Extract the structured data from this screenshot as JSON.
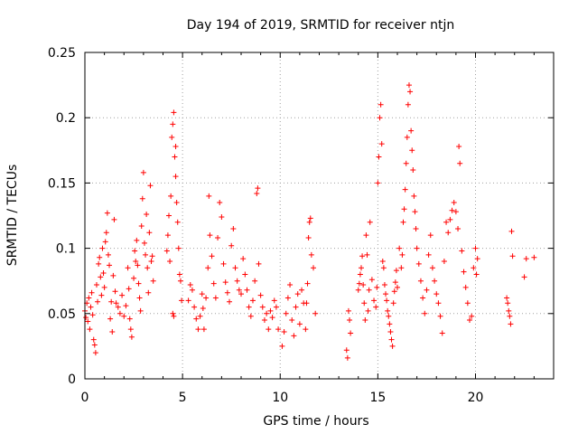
{
  "chart_data": {
    "type": "scatter",
    "title": "Day 194 of 2019, SRMTID for receiver ntjn",
    "xlabel": "GPS time / hours",
    "ylabel": "SRMTID / TECUs",
    "xlim": [
      0,
      24
    ],
    "ylim": [
      0,
      0.25
    ],
    "x_ticks": [
      0,
      5,
      10,
      15,
      20
    ],
    "x_tick_labels": [
      "0",
      "5",
      "10",
      "15",
      "20"
    ],
    "y_ticks": [
      0,
      0.05,
      0.1,
      0.15,
      0.2,
      0.25
    ],
    "y_tick_labels": [
      "0",
      "0.05",
      "0.1",
      "0.15",
      "0.2",
      "0.25"
    ],
    "grid": true,
    "marker": "+",
    "color": "#ff0000",
    "series": [
      {
        "name": "SRMTID",
        "points": [
          [
            0.0,
            0.052
          ],
          [
            0.05,
            0.047
          ],
          [
            0.1,
            0.058
          ],
          [
            0.15,
            0.044
          ],
          [
            0.2,
            0.062
          ],
          [
            0.25,
            0.038
          ],
          [
            0.3,
            0.055
          ],
          [
            0.35,
            0.066
          ],
          [
            0.4,
            0.049
          ],
          [
            0.45,
            0.03
          ],
          [
            0.5,
            0.026
          ],
          [
            0.55,
            0.02
          ],
          [
            0.6,
            0.072
          ],
          [
            0.65,
            0.059
          ],
          [
            0.7,
            0.088
          ],
          [
            0.75,
            0.093
          ],
          [
            0.8,
            0.078
          ],
          [
            0.85,
            0.064
          ],
          [
            0.9,
            0.1
          ],
          [
            0.95,
            0.081
          ],
          [
            1.0,
            0.07
          ],
          [
            1.05,
            0.105
          ],
          [
            1.1,
            0.112
          ],
          [
            1.15,
            0.127
          ],
          [
            1.2,
            0.095
          ],
          [
            1.25,
            0.087
          ],
          [
            1.3,
            0.046
          ],
          [
            1.35,
            0.059
          ],
          [
            1.4,
            0.036
          ],
          [
            1.45,
            0.079
          ],
          [
            1.5,
            0.122
          ],
          [
            1.55,
            0.067
          ],
          [
            1.6,
            0.058
          ],
          [
            1.7,
            0.055
          ],
          [
            1.8,
            0.05
          ],
          [
            1.9,
            0.064
          ],
          [
            2.0,
            0.048
          ],
          [
            2.1,
            0.056
          ],
          [
            2.2,
            0.085
          ],
          [
            2.25,
            0.069
          ],
          [
            2.3,
            0.046
          ],
          [
            2.35,
            0.038
          ],
          [
            2.4,
            0.032
          ],
          [
            2.5,
            0.077
          ],
          [
            2.55,
            0.098
          ],
          [
            2.6,
            0.09
          ],
          [
            2.65,
            0.106
          ],
          [
            2.7,
            0.087
          ],
          [
            2.75,
            0.073
          ],
          [
            2.8,
            0.062
          ],
          [
            2.85,
            0.052
          ],
          [
            2.9,
            0.117
          ],
          [
            2.95,
            0.138
          ],
          [
            3.0,
            0.158
          ],
          [
            3.05,
            0.104
          ],
          [
            3.1,
            0.095
          ],
          [
            3.15,
            0.126
          ],
          [
            3.2,
            0.085
          ],
          [
            3.25,
            0.066
          ],
          [
            3.3,
            0.112
          ],
          [
            3.35,
            0.148
          ],
          [
            3.4,
            0.09
          ],
          [
            3.45,
            0.094
          ],
          [
            3.5,
            0.075
          ],
          [
            4.2,
            0.098
          ],
          [
            4.25,
            0.11
          ],
          [
            4.3,
            0.125
          ],
          [
            4.35,
            0.09
          ],
          [
            4.4,
            0.14
          ],
          [
            4.45,
            0.185
          ],
          [
            4.5,
            0.195
          ],
          [
            4.55,
            0.204
          ],
          [
            4.6,
            0.17
          ],
          [
            4.65,
            0.155
          ],
          [
            4.7,
            0.135
          ],
          [
            4.75,
            0.12
          ],
          [
            4.8,
            0.1
          ],
          [
            4.85,
            0.08
          ],
          [
            4.9,
            0.075
          ],
          [
            4.95,
            0.06
          ],
          [
            4.55,
            0.048
          ],
          [
            4.5,
            0.05
          ],
          [
            4.65,
            0.178
          ],
          [
            5.3,
            0.06
          ],
          [
            5.4,
            0.072
          ],
          [
            5.5,
            0.068
          ],
          [
            5.6,
            0.055
          ],
          [
            5.7,
            0.046
          ],
          [
            5.8,
            0.038
          ],
          [
            5.9,
            0.048
          ],
          [
            6.0,
            0.065
          ],
          [
            6.05,
            0.054
          ],
          [
            6.1,
            0.038
          ],
          [
            6.2,
            0.062
          ],
          [
            6.3,
            0.085
          ],
          [
            6.35,
            0.14
          ],
          [
            6.4,
            0.11
          ],
          [
            6.5,
            0.094
          ],
          [
            6.6,
            0.073
          ],
          [
            6.7,
            0.062
          ],
          [
            6.8,
            0.108
          ],
          [
            6.9,
            0.135
          ],
          [
            7.0,
            0.124
          ],
          [
            7.1,
            0.088
          ],
          [
            7.2,
            0.074
          ],
          [
            7.3,
            0.066
          ],
          [
            7.4,
            0.059
          ],
          [
            7.5,
            0.102
          ],
          [
            7.6,
            0.115
          ],
          [
            7.7,
            0.085
          ],
          [
            7.8,
            0.075
          ],
          [
            7.9,
            0.068
          ],
          [
            8.0,
            0.065
          ],
          [
            8.1,
            0.092
          ],
          [
            8.2,
            0.08
          ],
          [
            8.3,
            0.068
          ],
          [
            8.4,
            0.055
          ],
          [
            8.5,
            0.048
          ],
          [
            8.6,
            0.06
          ],
          [
            8.7,
            0.075
          ],
          [
            8.8,
            0.142
          ],
          [
            8.85,
            0.146
          ],
          [
            8.9,
            0.088
          ],
          [
            9.0,
            0.064
          ],
          [
            9.1,
            0.055
          ],
          [
            9.2,
            0.045
          ],
          [
            9.3,
            0.05
          ],
          [
            9.4,
            0.038
          ],
          [
            9.5,
            0.052
          ],
          [
            9.6,
            0.047
          ],
          [
            9.7,
            0.06
          ],
          [
            9.8,
            0.055
          ],
          [
            9.9,
            0.038
          ],
          [
            10.1,
            0.025
          ],
          [
            10.2,
            0.036
          ],
          [
            10.3,
            0.05
          ],
          [
            10.4,
            0.062
          ],
          [
            10.5,
            0.072
          ],
          [
            10.6,
            0.045
          ],
          [
            10.7,
            0.033
          ],
          [
            10.8,
            0.055
          ],
          [
            10.9,
            0.065
          ],
          [
            11.0,
            0.042
          ],
          [
            11.1,
            0.068
          ],
          [
            11.2,
            0.058
          ],
          [
            11.3,
            0.038
          ],
          [
            11.4,
            0.073
          ],
          [
            11.5,
            0.12
          ],
          [
            11.55,
            0.123
          ],
          [
            11.6,
            0.095
          ],
          [
            11.7,
            0.085
          ],
          [
            11.8,
            0.05
          ],
          [
            11.45,
            0.108
          ],
          [
            11.35,
            0.058
          ],
          [
            13.4,
            0.022
          ],
          [
            13.45,
            0.016
          ],
          [
            13.5,
            0.052
          ],
          [
            13.55,
            0.045
          ],
          [
            13.6,
            0.035
          ],
          [
            14.0,
            0.068
          ],
          [
            14.05,
            0.073
          ],
          [
            14.1,
            0.08
          ],
          [
            14.15,
            0.085
          ],
          [
            14.2,
            0.094
          ],
          [
            14.25,
            0.072
          ],
          [
            14.3,
            0.058
          ],
          [
            14.35,
            0.045
          ],
          [
            14.4,
            0.11
          ],
          [
            14.45,
            0.095
          ],
          [
            14.5,
            0.052
          ],
          [
            14.55,
            0.068
          ],
          [
            14.6,
            0.12
          ],
          [
            14.7,
            0.076
          ],
          [
            14.8,
            0.06
          ],
          [
            14.9,
            0.055
          ],
          [
            14.95,
            0.07
          ],
          [
            15.0,
            0.15
          ],
          [
            15.05,
            0.17
          ],
          [
            15.1,
            0.2
          ],
          [
            15.15,
            0.21
          ],
          [
            15.2,
            0.18
          ],
          [
            15.25,
            0.09
          ],
          [
            15.3,
            0.085
          ],
          [
            15.35,
            0.072
          ],
          [
            15.4,
            0.065
          ],
          [
            15.45,
            0.06
          ],
          [
            15.5,
            0.052
          ],
          [
            15.55,
            0.048
          ],
          [
            15.6,
            0.042
          ],
          [
            15.65,
            0.036
          ],
          [
            15.7,
            0.03
          ],
          [
            15.75,
            0.025
          ],
          [
            15.8,
            0.058
          ],
          [
            15.85,
            0.067
          ],
          [
            15.9,
            0.074
          ],
          [
            15.95,
            0.083
          ],
          [
            16.0,
            0.07
          ],
          [
            16.1,
            0.1
          ],
          [
            16.2,
            0.085
          ],
          [
            16.25,
            0.095
          ],
          [
            16.3,
            0.12
          ],
          [
            16.35,
            0.13
          ],
          [
            16.4,
            0.145
          ],
          [
            16.45,
            0.165
          ],
          [
            16.5,
            0.185
          ],
          [
            16.55,
            0.21
          ],
          [
            16.6,
            0.225
          ],
          [
            16.65,
            0.22
          ],
          [
            16.7,
            0.19
          ],
          [
            16.75,
            0.175
          ],
          [
            16.8,
            0.16
          ],
          [
            16.85,
            0.14
          ],
          [
            16.9,
            0.128
          ],
          [
            16.95,
            0.115
          ],
          [
            17.0,
            0.1
          ],
          [
            17.1,
            0.088
          ],
          [
            17.2,
            0.075
          ],
          [
            17.3,
            0.062
          ],
          [
            17.4,
            0.05
          ],
          [
            17.5,
            0.068
          ],
          [
            17.6,
            0.095
          ],
          [
            17.7,
            0.11
          ],
          [
            17.8,
            0.085
          ],
          [
            17.9,
            0.075
          ],
          [
            18.0,
            0.065
          ],
          [
            18.1,
            0.058
          ],
          [
            18.2,
            0.048
          ],
          [
            18.3,
            0.035
          ],
          [
            18.4,
            0.09
          ],
          [
            18.5,
            0.12
          ],
          [
            18.6,
            0.112
          ],
          [
            18.7,
            0.122
          ],
          [
            18.8,
            0.129
          ],
          [
            18.9,
            0.135
          ],
          [
            19.0,
            0.128
          ],
          [
            19.1,
            0.115
          ],
          [
            19.15,
            0.178
          ],
          [
            19.2,
            0.165
          ],
          [
            19.3,
            0.098
          ],
          [
            19.4,
            0.082
          ],
          [
            19.5,
            0.07
          ],
          [
            19.6,
            0.058
          ],
          [
            19.7,
            0.045
          ],
          [
            19.8,
            0.048
          ],
          [
            19.9,
            0.085
          ],
          [
            20.0,
            0.1
          ],
          [
            20.05,
            0.08
          ],
          [
            20.1,
            0.092
          ],
          [
            21.6,
            0.062
          ],
          [
            21.65,
            0.058
          ],
          [
            21.7,
            0.052
          ],
          [
            21.75,
            0.048
          ],
          [
            21.8,
            0.042
          ],
          [
            21.85,
            0.113
          ],
          [
            21.9,
            0.094
          ],
          [
            22.5,
            0.078
          ],
          [
            22.6,
            0.092
          ],
          [
            23.0,
            0.093
          ]
        ]
      }
    ]
  }
}
